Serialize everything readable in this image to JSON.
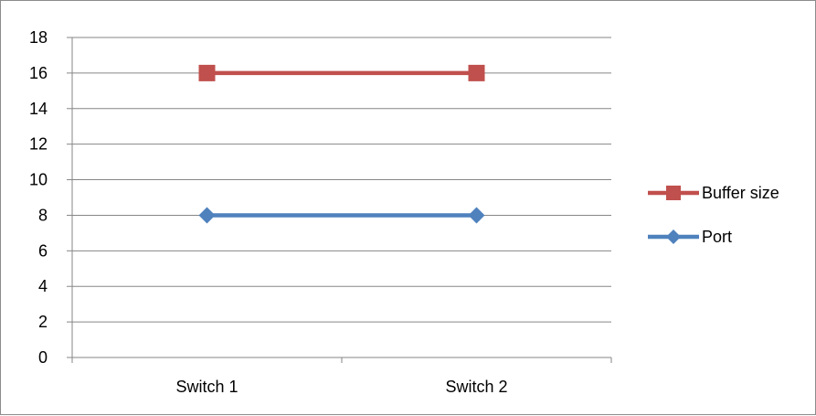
{
  "chart_data": {
    "type": "line",
    "categories": [
      "Switch 1",
      "Switch 2"
    ],
    "series": [
      {
        "name": "Buffer size",
        "values": [
          16,
          16
        ],
        "color": "#c0504d",
        "marker": "square"
      },
      {
        "name": "Port",
        "values": [
          8,
          8
        ],
        "color": "#4f81bd",
        "marker": "diamond"
      }
    ],
    "ylim": [
      0,
      18
    ],
    "yticks": [
      0,
      2,
      4,
      6,
      8,
      10,
      12,
      14,
      16,
      18
    ],
    "grid": true,
    "legend_position": "right",
    "gridline_color": "#868686"
  }
}
